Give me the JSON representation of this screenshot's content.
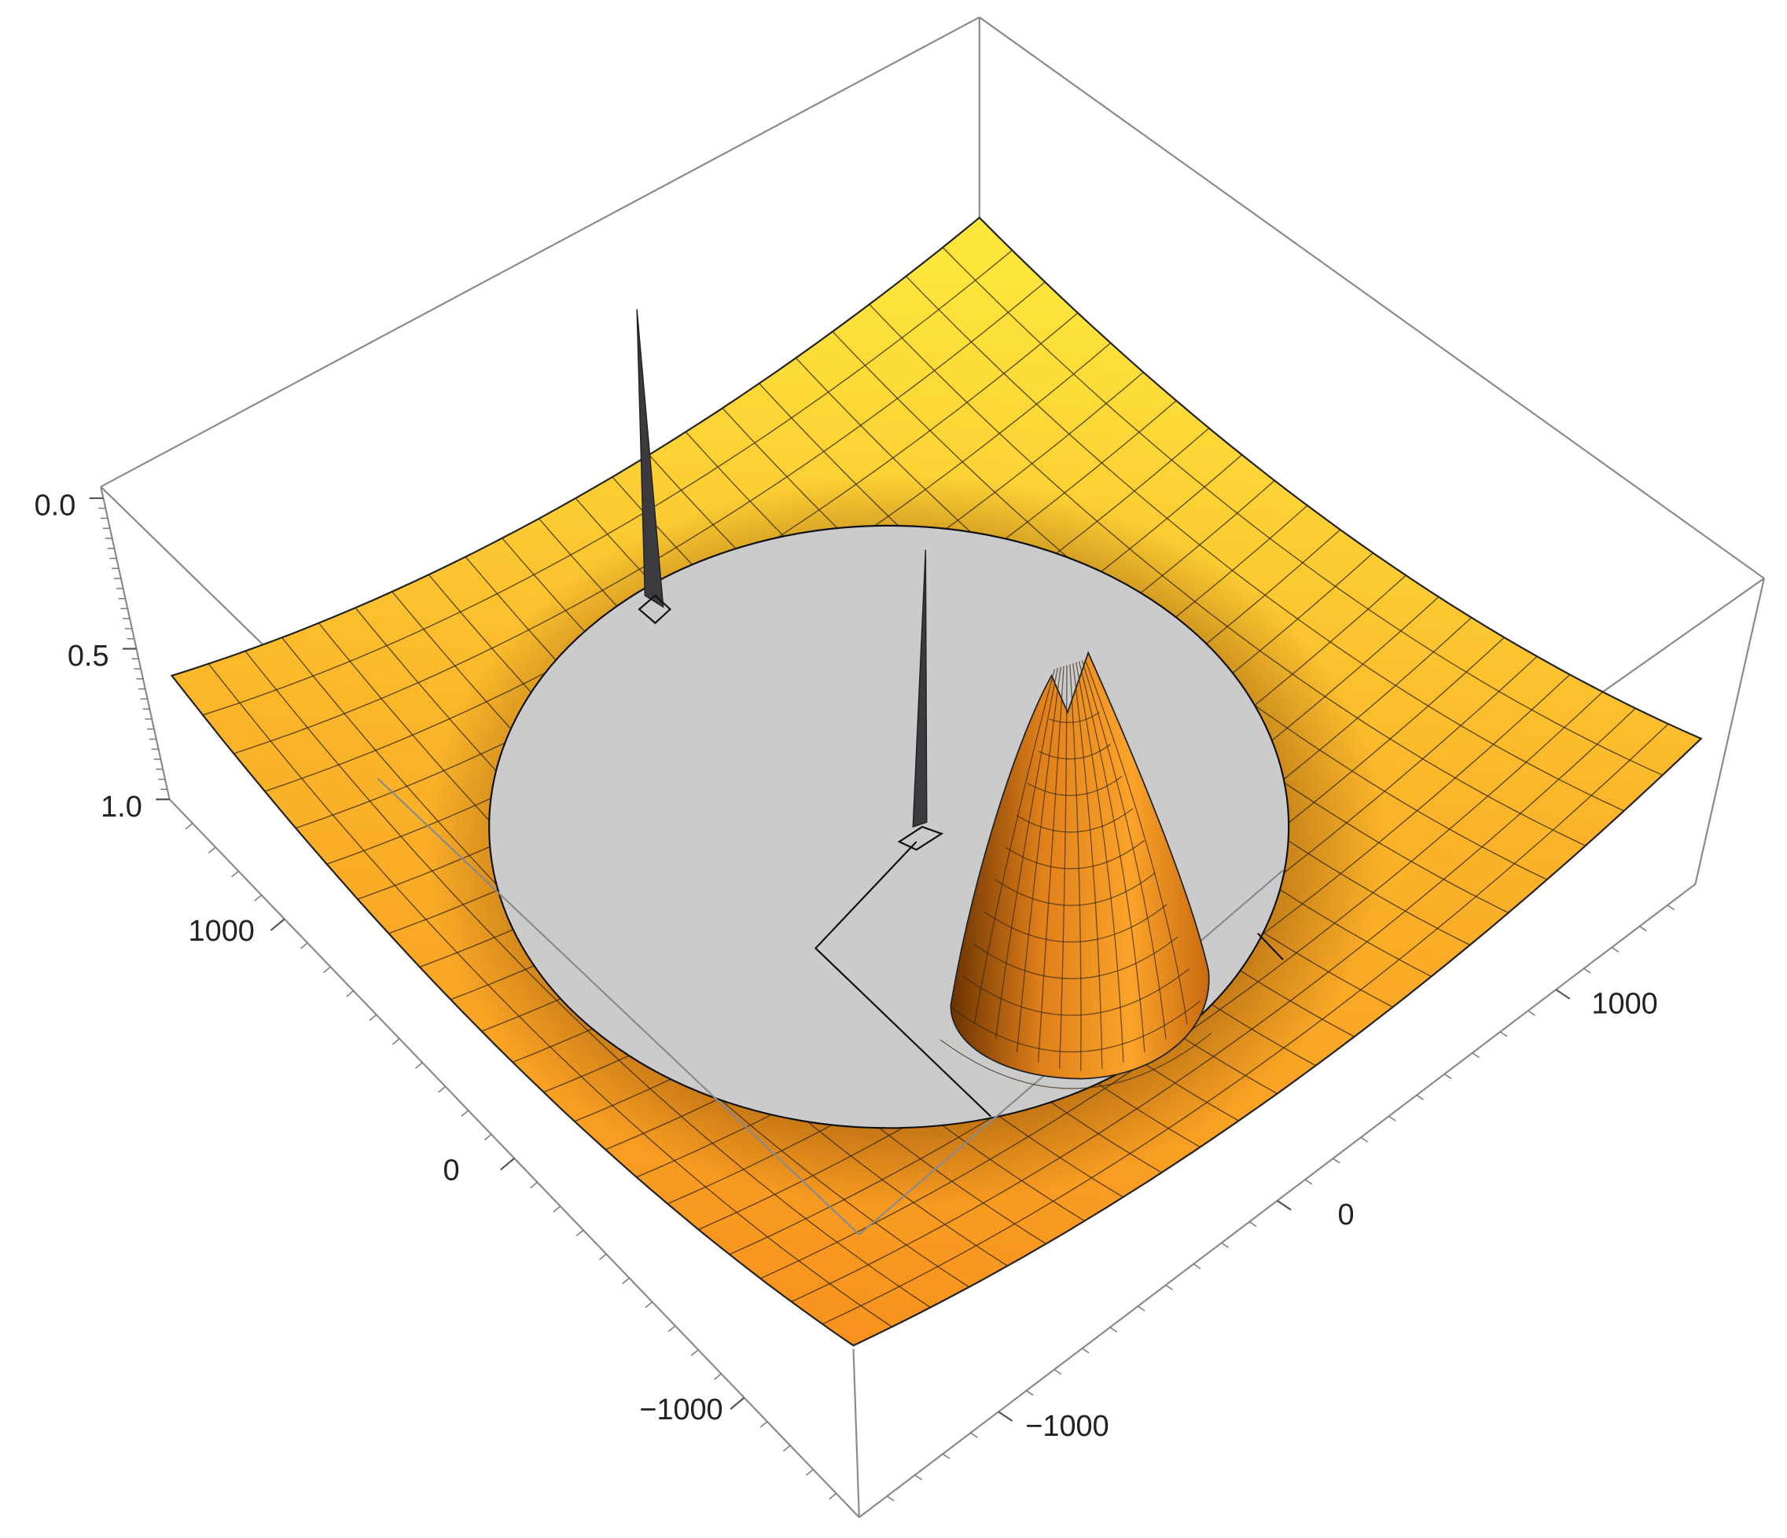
{
  "chart_data": {
    "type": "surface3d",
    "xticks": [
      {
        "value": -1000,
        "label": "−1000"
      },
      0,
      1000
    ],
    "yticks": [
      {
        "value": -1000,
        "label": "−1000"
      },
      0,
      1000
    ],
    "zticks": [
      {
        "value": 0,
        "label": "0.0"
      },
      0.5,
      {
        "value": 1,
        "label": "1.0"
      }
    ],
    "xlim": [
      -1500,
      1500
    ],
    "ylim": [
      -1500,
      1500
    ],
    "zlim": [
      0,
      1
    ],
    "zreversed": true,
    "color": "#f7931e"
  }
}
